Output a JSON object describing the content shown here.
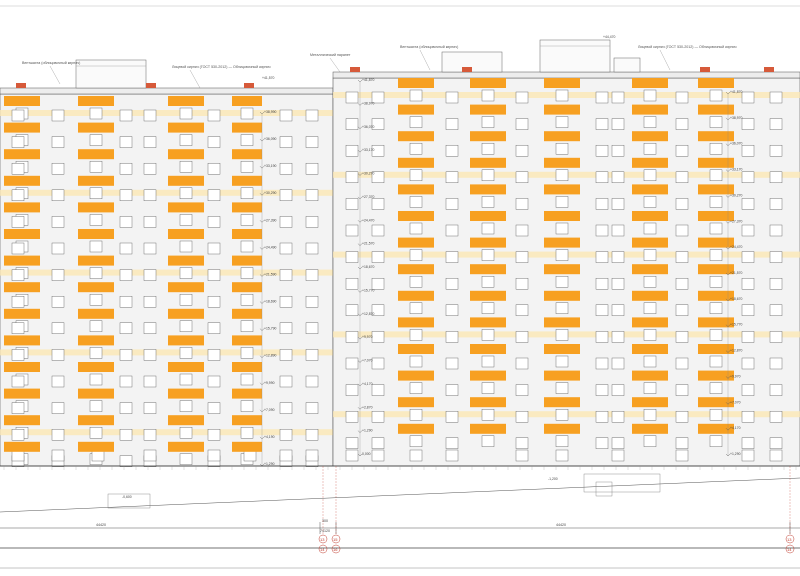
{
  "colors": {
    "balcony": "#f7a021",
    "band": "#fbe7b4",
    "wall": "#f3f3f3",
    "roof_cap": "#d65a3a",
    "line": "#555555",
    "axis": "#c0392b"
  },
  "roof_notes": [
    "Вентшахта (облицовочный кирпич)",
    "Лицевой кирпич (ГОСТ 530-2012) — Облицовочный кирпич",
    "Металлический парапет",
    "Вентшахта (облицовочный кирпич)",
    "Лицевой кирпич (ГОСТ 530-2012) — Облицовочный кирпич"
  ],
  "left_block": {
    "top_elevation": "+41,570",
    "floor_elevations": [
      "+38,990",
      "+36,090",
      "+33,190",
      "+30,290",
      "+27,390",
      "+24,490",
      "+21,590",
      "+18,690",
      "+15,790",
      "+12,890",
      "+9,990",
      "+7,090",
      "+4,190",
      "+1,290"
    ]
  },
  "right_block": {
    "top_elevation": "+44,470",
    "inner_elevations": [
      "+41,870",
      "+38,970",
      "+36,070",
      "+33,170",
      "+30,270",
      "+27,370",
      "+24,470",
      "+21,570",
      "+18,670",
      "+15,770",
      "+12,870",
      "+9,970",
      "+7,070",
      "+4,170",
      "+2,870",
      "+1,290",
      "0,000"
    ],
    "outer_elevations": [
      "+41,870",
      "+38,970",
      "+36,070",
      "+33,170",
      "+30,270",
      "+27,370",
      "+24,470",
      "+21,570",
      "+18,670",
      "+15,770",
      "+12,870",
      "+9,970",
      "+7,070",
      "+4,170",
      "+1,290"
    ]
  },
  "ground_marks": [
    "-0,600",
    "-1,200"
  ],
  "dimensions": {
    "left_span": "44420",
    "gap": "300",
    "gap_total": "74120",
    "right_span": "44420"
  },
  "axes": [
    "13",
    "14",
    "15",
    "16"
  ]
}
